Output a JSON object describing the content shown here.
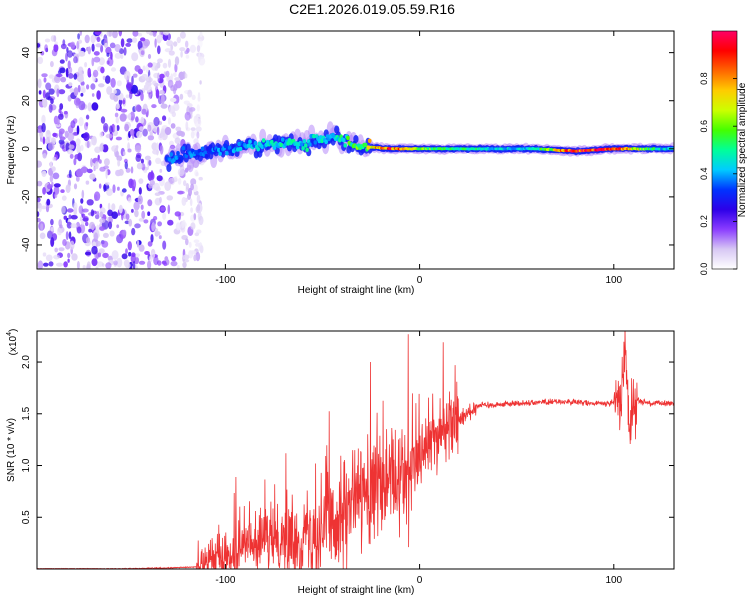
{
  "title": "C2E1.2026.019.05.59.R16",
  "spectrogram": {
    "xlabel": "Height of straight line (km)",
    "ylabel": "Frequency (Hz)",
    "xlim": [
      -197,
      131
    ],
    "ylim": [
      -50,
      49
    ],
    "xticks": [
      {
        "v": -100,
        "label": "-100"
      },
      {
        "v": 0,
        "label": "0"
      },
      {
        "v": 100,
        "label": "100"
      }
    ],
    "yticks": [
      {
        "v": -40,
        "label": "-40"
      },
      {
        "v": -20,
        "label": "-20"
      },
      {
        "v": 0,
        "label": "0"
      },
      {
        "v": 20,
        "label": "20"
      },
      {
        "v": 40,
        "label": "40"
      }
    ]
  },
  "colorbar": {
    "label": "Normalized spectral amplitude",
    "ticks": [
      {
        "v": 0.0,
        "label": "0.0"
      },
      {
        "v": 0.2,
        "label": "0.2"
      },
      {
        "v": 0.4,
        "label": "0.4"
      },
      {
        "v": 0.6,
        "label": "0.6"
      },
      {
        "v": 0.8,
        "label": "0.8"
      }
    ],
    "colors": [
      "#ffffff",
      "#d8c8f4",
      "#8a3cff",
      "#2d00e8",
      "#0033ff",
      "#00ccff",
      "#00ff99",
      "#44ff00",
      "#ccff00",
      "#ffcc00",
      "#ff6600",
      "#ff0000",
      "#ff0066"
    ]
  },
  "chart_data": [
    {
      "type": "heatmap",
      "title": "C2E1.2026.019.05.59.R16",
      "xlabel": "Height of straight line (km)",
      "ylabel": "Frequency (Hz)",
      "xlim": [
        -197,
        131
      ],
      "ylim": [
        -50,
        49
      ],
      "colorbar_label": "Normalized spectral amplitude",
      "colorbar_range": [
        0,
        1
      ],
      "description_values": {
        "noise_region_km": [
          -197,
          -118
        ],
        "signal_band": [
          {
            "x": -130,
            "f": -4,
            "amp": 0.35
          },
          {
            "x": -110,
            "f": -1,
            "amp": 0.35
          },
          {
            "x": -90,
            "f": 1,
            "amp": 0.4
          },
          {
            "x": -75,
            "f": 2,
            "amp": 0.45
          },
          {
            "x": -60,
            "f": 2,
            "amp": 0.45
          },
          {
            "x": -45,
            "f": 5,
            "amp": 0.45
          },
          {
            "x": -30,
            "f": 1,
            "amp": 0.6
          },
          {
            "x": -15,
            "f": 0,
            "amp": 0.9
          },
          {
            "x": 0,
            "f": 0,
            "amp": 0.6
          },
          {
            "x": 15,
            "f": 0,
            "amp": 0.55
          },
          {
            "x": 40,
            "f": 0,
            "amp": 0.45
          },
          {
            "x": 60,
            "f": 0,
            "amp": 0.45
          },
          {
            "x": 80,
            "f": -1,
            "amp": 0.95
          },
          {
            "x": 100,
            "f": 0,
            "amp": 0.9
          },
          {
            "x": 125,
            "f": 0,
            "amp": 0.45
          }
        ]
      }
    },
    {
      "type": "line",
      "xlabel": "Height of straight line (km)",
      "ylabel": "SNR (10 * v/v)",
      "y_multiplier": "(x10^4)",
      "xlim": [
        -197,
        131
      ],
      "ylim": [
        0,
        2.3
      ],
      "series": [
        {
          "name": "SNR",
          "color": "#ee3333",
          "x": [
            -197,
            -160,
            -130,
            -115,
            -105,
            -95,
            -85,
            -75,
            -65,
            -55,
            -45,
            -35,
            -25,
            -15,
            -5,
            5,
            12,
            20,
            30,
            50,
            70,
            90,
            100,
            104,
            106,
            108,
            110,
            118,
            131
          ],
          "y": [
            0.0,
            0.0,
            0.01,
            0.02,
            0.1,
            0.2,
            0.25,
            0.28,
            0.3,
            0.35,
            0.45,
            0.55,
            0.7,
            0.8,
            0.9,
            1.2,
            1.35,
            1.45,
            1.58,
            1.6,
            1.62,
            1.6,
            1.6,
            1.7,
            2.2,
            1.3,
            1.65,
            1.6,
            1.6
          ]
        }
      ],
      "xticks": [
        {
          "v": -100,
          "label": "-100"
        },
        {
          "v": 0,
          "label": "0"
        },
        {
          "v": 100,
          "label": "100"
        }
      ],
      "yticks": [
        {
          "v": 0.5,
          "label": "0.5"
        },
        {
          "v": 1.0,
          "label": "1.0"
        },
        {
          "v": 1.5,
          "label": "1.5"
        },
        {
          "v": 2.0,
          "label": "2.0"
        }
      ]
    }
  ],
  "snr": {
    "xlabel": "Height of straight line (km)",
    "ylabel": "SNR (10 * v/v)",
    "multiplier_base": "(x10",
    "multiplier_exp": "4",
    "multiplier_close": ")"
  }
}
